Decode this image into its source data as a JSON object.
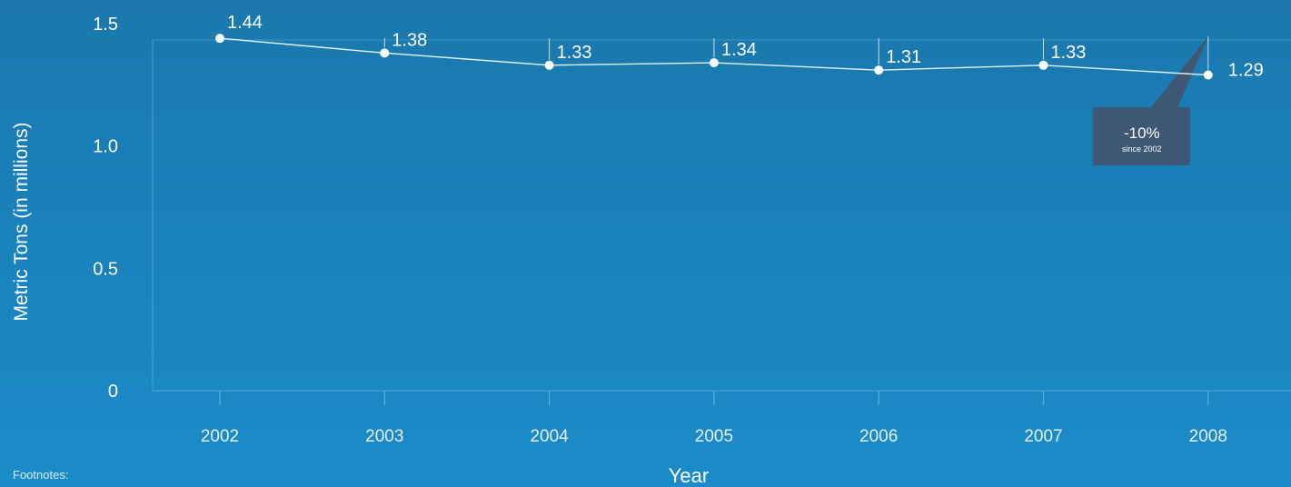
{
  "chart_data": {
    "type": "line",
    "title": "",
    "xlabel": "Year",
    "ylabel": "Metric Tons (in millions)",
    "x": [
      "2002",
      "2003",
      "2004",
      "2005",
      "2006",
      "2007",
      "2008"
    ],
    "series": [
      {
        "values": [
          1.44,
          1.38,
          1.33,
          1.34,
          1.31,
          1.33,
          1.29
        ],
        "data_labels": [
          "1.44",
          "1.38",
          "1.33",
          "1.34",
          "1.31",
          "1.33",
          "1.29"
        ]
      }
    ],
    "ylim": [
      0,
      1.5
    ],
    "yticks": [
      {
        "value": 0,
        "label": "0"
      },
      {
        "value": 0.5,
        "label": "0.5"
      },
      {
        "value": 1.0,
        "label": "1.0"
      },
      {
        "value": 1.5,
        "label": "1.5"
      }
    ],
    "grid": false,
    "annotation": {
      "x": "2008",
      "text": "-10%",
      "subtext": "since 2002"
    },
    "colors": {
      "line": "#e6f2f9",
      "point": "#ffffff",
      "axis": "#5fb0dc",
      "callout": "#3d5774"
    }
  },
  "footnotes_label": "Footnotes:"
}
